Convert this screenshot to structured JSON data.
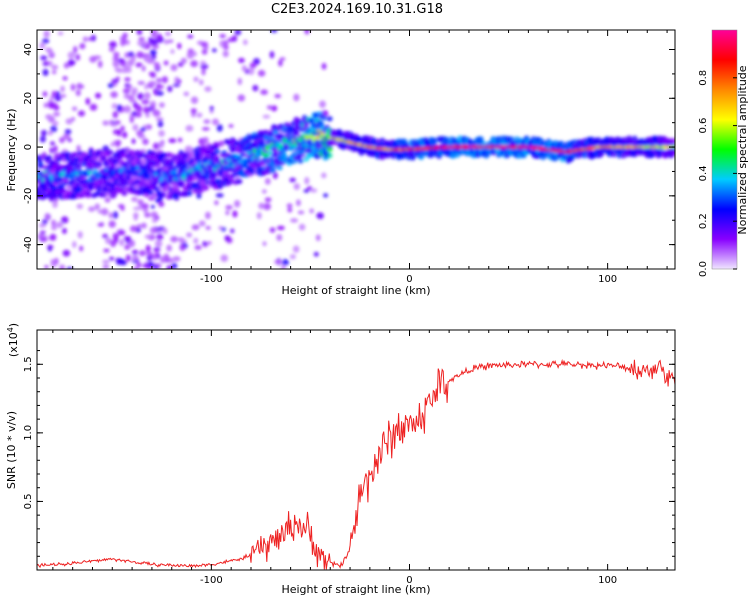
{
  "title": "C2E3.2024.169.10.31.G18",
  "chart_data": [
    {
      "type": "heatmap",
      "xlabel": "Height of straight line (km)",
      "ylabel": "Frequency (Hz)",
      "xlim": [
        -188,
        134
      ],
      "ylim": [
        -50,
        48
      ],
      "x_ticks": [
        -100,
        0,
        100
      ],
      "y_ticks": [
        -40,
        -20,
        0,
        20,
        40
      ],
      "colorbar": {
        "label": "Normalized spectral amplitude",
        "range": [
          0,
          1
        ],
        "ticks": [
          "0.0",
          "0.2",
          "0.4",
          "0.6",
          "0.8"
        ],
        "colors": [
          "#f0e6ff",
          "#8800ff",
          "#0000ff",
          "#00ccff",
          "#00ff00",
          "#ffff00",
          "#ff8800",
          "#ff0000",
          "#ff0099"
        ]
      },
      "ridge": {
        "x": [
          -180,
          -160,
          -140,
          -120,
          -100,
          -80,
          -60,
          -45,
          -35,
          -20,
          -10,
          0,
          20,
          40,
          60,
          80,
          95,
          110,
          134
        ],
        "freq": [
          -12,
          -11,
          -10,
          -12,
          -8,
          -4,
          2,
          5,
          3,
          0,
          -1,
          -1,
          0,
          0,
          0,
          -2,
          0,
          0,
          0
        ],
        "amplitude": [
          0.3,
          0.3,
          0.25,
          0.3,
          0.3,
          0.35,
          0.4,
          0.5,
          0.65,
          0.8,
          0.75,
          0.85,
          0.95,
          0.97,
          0.95,
          0.9,
          0.75,
          0.7,
          0.6
        ]
      }
    },
    {
      "type": "line",
      "xlabel": "Height of straight line (km)",
      "ylabel": "SNR (10 * v/v)",
      "y_multiplier": "(x10",
      "y_multiplier_exp": "4",
      "y_multiplier_close": ")",
      "xlim": [
        -188,
        134
      ],
      "ylim": [
        0,
        1.75
      ],
      "x_ticks": [
        -100,
        0,
        100
      ],
      "y_ticks": [
        "0.5",
        "1.0",
        "1.5"
      ],
      "y_tick_values": [
        0.5,
        1.0,
        1.5
      ],
      "color": "#ee2222",
      "x": [
        -188,
        -170,
        -150,
        -130,
        -110,
        -100,
        -85,
        -75,
        -65,
        -58,
        -52,
        -45,
        -40,
        -35,
        -30,
        -25,
        -20,
        -15,
        -10,
        -5,
        0,
        5,
        10,
        15,
        20,
        30,
        40,
        60,
        80,
        100,
        110,
        120,
        125,
        130,
        134
      ],
      "y": [
        0.03,
        0.05,
        0.08,
        0.04,
        0.03,
        0.04,
        0.08,
        0.15,
        0.25,
        0.35,
        0.3,
        0.1,
        0.05,
        0.03,
        0.15,
        0.55,
        0.7,
        0.85,
        0.95,
        1.05,
        1.05,
        1.1,
        1.2,
        1.35,
        1.38,
        1.46,
        1.49,
        1.5,
        1.5,
        1.49,
        1.48,
        1.45,
        1.5,
        1.42,
        1.38
      ]
    }
  ]
}
